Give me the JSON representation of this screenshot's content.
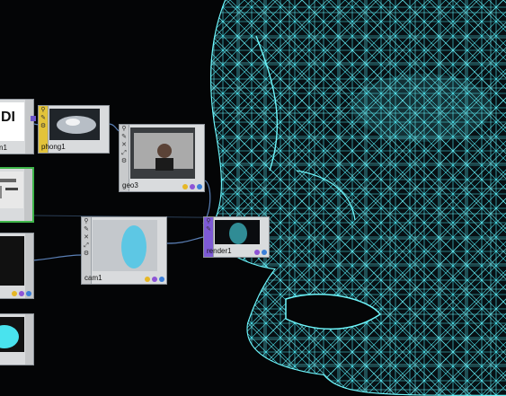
{
  "network": {
    "nodes": [
      {
        "id": "n_left_top",
        "label": "n1",
        "thumb": "black"
      },
      {
        "id": "phong1",
        "label": "phong1",
        "thumb": "sphere"
      },
      {
        "id": "geo3",
        "label": "geo3",
        "thumb": "person"
      },
      {
        "id": "n_left_green",
        "label": "",
        "thumb": "ui"
      },
      {
        "id": "cam1",
        "label": "cam1",
        "thumb": "cam"
      },
      {
        "id": "render1",
        "label": "render1",
        "thumb": "render"
      },
      {
        "id": "n_left_mid",
        "label": "",
        "thumb": "black"
      },
      {
        "id": "n_left_bottom",
        "label": "",
        "thumb": "blob"
      }
    ],
    "partial_text": "DI"
  },
  "colors": {
    "wire": "#49e3ee",
    "material_bar": "#e2c33a",
    "selected_border": "#3fb64a",
    "link": "#5a7fb5"
  },
  "icons": [
    "pin-icon",
    "close-icon",
    "expand-icon",
    "settings-icon"
  ]
}
